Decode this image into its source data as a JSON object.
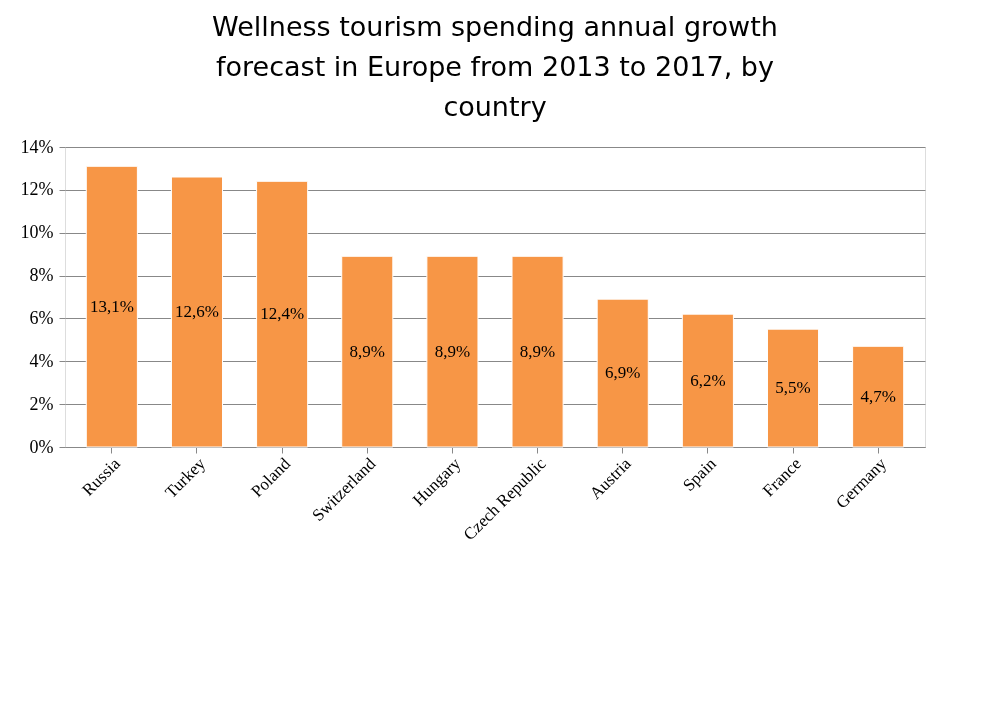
{
  "chart_data": {
    "type": "bar",
    "title": "Wellness tourism spending annual growth forecast in Europe from 2013 to 2017, by country",
    "categories": [
      "Russia",
      "Turkey",
      "Poland",
      "Switzerland",
      "Hungary",
      "Czech Republic",
      "Austria",
      "Spain",
      "France",
      "Germany"
    ],
    "values": [
      13.1,
      12.6,
      12.4,
      8.9,
      8.9,
      8.9,
      6.9,
      6.2,
      5.5,
      4.7
    ],
    "value_labels": [
      "13,1%",
      "12,6%",
      "12,4%",
      "8,9%",
      "8,9%",
      "8,9%",
      "6,9%",
      "6,2%",
      "5,5%",
      "4,7%"
    ],
    "color": "#f79646",
    "ylim": [
      0,
      14
    ],
    "yticks": [
      {
        "value": 0,
        "label": "0%"
      },
      {
        "value": 2,
        "label": "2%"
      },
      {
        "value": 4,
        "label": "4%"
      },
      {
        "value": 6,
        "label": "6%"
      },
      {
        "value": 8,
        "label": "8%"
      },
      {
        "value": 10,
        "label": "10%"
      },
      {
        "value": 12,
        "label": "12%"
      },
      {
        "value": 14,
        "label": "14%"
      }
    ],
    "grid": "y"
  }
}
